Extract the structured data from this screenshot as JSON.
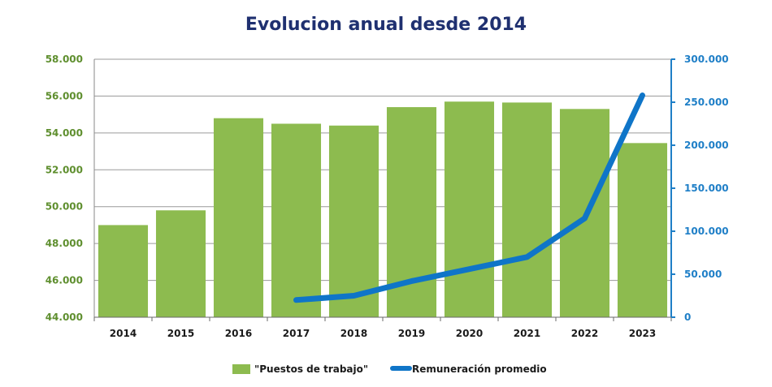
{
  "chart_data": {
    "type": "bar",
    "title": "Evolucion anual desde 2014",
    "categories": [
      "2014",
      "2015",
      "2016",
      "2017",
      "2018",
      "2019",
      "2020",
      "2021",
      "2022",
      "2023"
    ],
    "series": [
      {
        "name": "\"Puestos de trabajo\"",
        "type": "bar",
        "axis": "left",
        "color": "#8dbb4f",
        "values": [
          49000,
          49800,
          54800,
          54500,
          54400,
          55400,
          55700,
          55650,
          55300,
          53450
        ]
      },
      {
        "name": "Remuneración promedio",
        "type": "line",
        "axis": "right",
        "color": "#0f75c8",
        "values": [
          null,
          null,
          null,
          20000,
          25000,
          42000,
          56000,
          70000,
          115000,
          258000
        ]
      }
    ],
    "ylim_left": [
      44000,
      58000
    ],
    "yticks_left": [
      "44.000",
      "46.000",
      "48.000",
      "50.000",
      "52.000",
      "54.000",
      "56.000",
      "58.000"
    ],
    "ylim_right": [
      0,
      300000
    ],
    "yticks_right": [
      "0",
      "50.000",
      "100.000",
      "150.000",
      "200.000",
      "250.000",
      "300.000"
    ],
    "grid": true,
    "legend_position": "bottom"
  }
}
